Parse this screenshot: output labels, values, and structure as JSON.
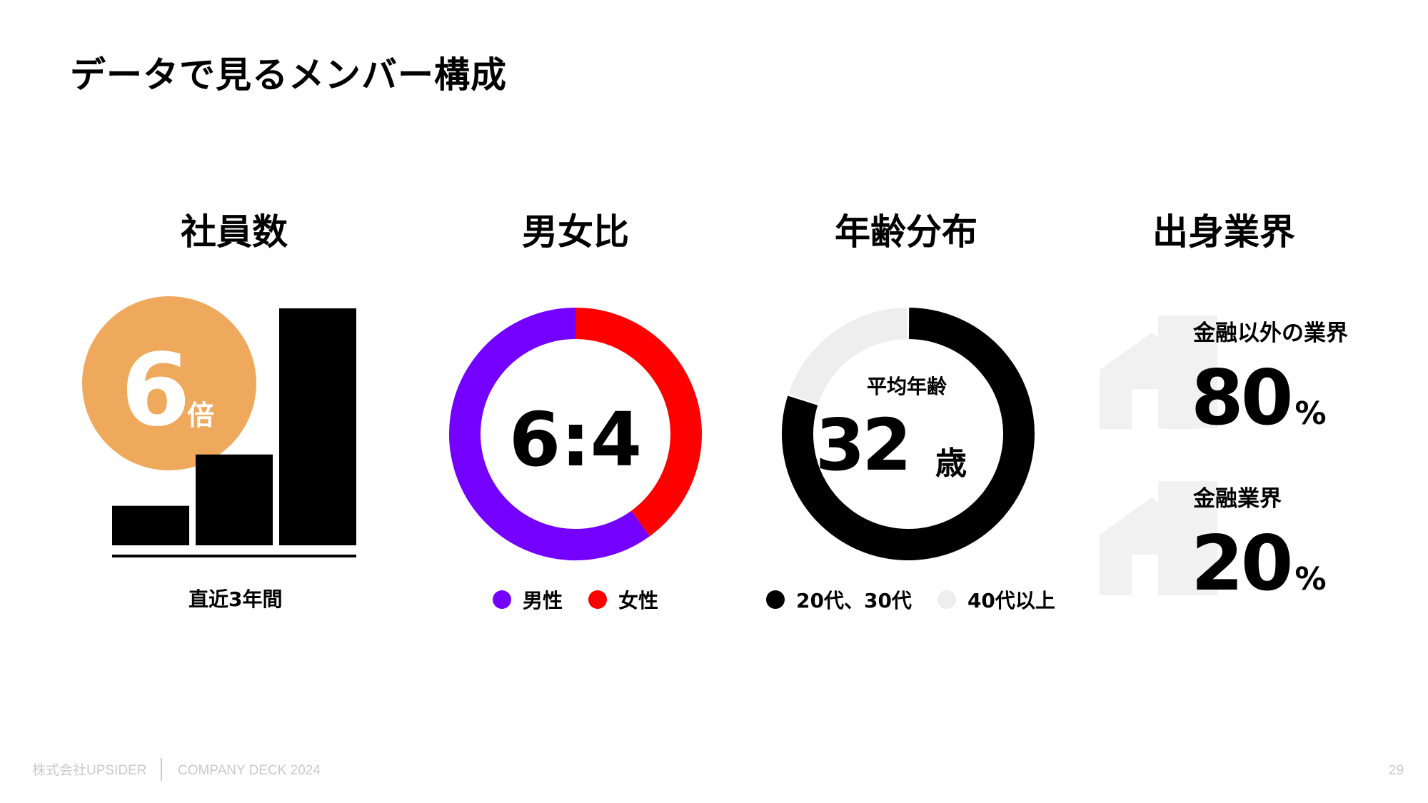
{
  "title": "データで見るメンバー構成",
  "columns": {
    "employees": {
      "heading": "社員数",
      "multiplier_number": "6",
      "multiplier_unit": "倍",
      "caption": "直近3年間"
    },
    "gender": {
      "heading": "男女比",
      "ratio": "6:4",
      "legend": [
        "男性",
        "女性"
      ]
    },
    "age": {
      "heading": "年齢分布",
      "center_label": "平均年齢",
      "center_number": "32",
      "center_unit": "歳",
      "legend": [
        "20代、30代",
        "40代以上"
      ]
    },
    "industry": {
      "heading": "出身業界",
      "items": [
        {
          "label": "金融以外の業界",
          "number": "80",
          "unit": "%"
        },
        {
          "label": "金融業界",
          "number": "20",
          "unit": "%"
        }
      ]
    }
  },
  "colors": {
    "orange": "#EFA95C",
    "purple": "#7400FF",
    "red": "#FF0000",
    "black": "#000000",
    "light_gray": "#EEEEEF",
    "icon_gray": "#F1F1F2"
  },
  "chart_data": [
    {
      "type": "bar",
      "title": "社員数",
      "xlabel": "直近3年間",
      "categories": [
        "",
        "",
        ""
      ],
      "values": [
        1,
        2.3,
        6
      ],
      "annotation": "6倍"
    },
    {
      "type": "pie",
      "title": "男女比",
      "categories": [
        "男性",
        "女性"
      ],
      "values": [
        60,
        40
      ],
      "colors": [
        "#7400FF",
        "#FF0000"
      ],
      "donut": true,
      "center_text": "6:4"
    },
    {
      "type": "pie",
      "title": "年齢分布",
      "categories": [
        "20代、30代",
        "40代以上"
      ],
      "values": [
        80,
        20
      ],
      "colors": [
        "#000000",
        "#EEEEEF"
      ],
      "donut": true,
      "center_text": "平均年齢 32歳"
    }
  ],
  "footer": {
    "company": "株式会社UPSIDER",
    "deck": "COMPANY DECK 2024",
    "page": "29"
  }
}
